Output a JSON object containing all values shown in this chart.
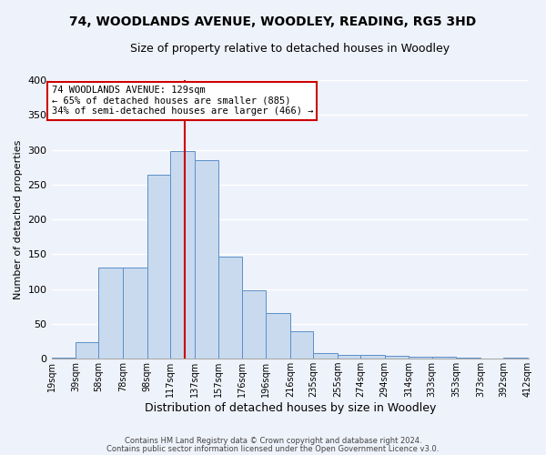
{
  "title1": "74, WOODLANDS AVENUE, WOODLEY, READING, RG5 3HD",
  "title2": "Size of property relative to detached houses in Woodley",
  "xlabel": "Distribution of detached houses by size in Woodley",
  "ylabel": "Number of detached properties",
  "bar_left_edges": [
    19,
    39,
    58,
    78,
    98,
    117,
    137,
    157,
    176,
    196,
    216,
    235,
    255,
    274,
    294,
    314,
    333,
    353,
    373,
    392
  ],
  "bar_widths": [
    20,
    19,
    20,
    20,
    19,
    20,
    20,
    19,
    20,
    20,
    19,
    20,
    19,
    20,
    20,
    19,
    20,
    20,
    19,
    20
  ],
  "bar_heights": [
    2,
    24,
    131,
    131,
    264,
    298,
    285,
    147,
    98,
    66,
    39,
    8,
    5,
    5,
    4,
    3,
    3,
    1,
    0,
    2
  ],
  "bar_color": "#c9daef",
  "bar_edgecolor": "#5b8fc9",
  "vline_x": 129,
  "vline_color": "#cc0000",
  "annotation_text": "74 WOODLANDS AVENUE: 129sqm\n← 65% of detached houses are smaller (885)\n34% of semi-detached houses are larger (466) →",
  "annotation_box_color": "#ffffff",
  "annotation_box_edgecolor": "#cc0000",
  "ylim": [
    0,
    400
  ],
  "yticks": [
    0,
    50,
    100,
    150,
    200,
    250,
    300,
    350,
    400
  ],
  "tick_labels": [
    "19sqm",
    "39sqm",
    "58sqm",
    "78sqm",
    "98sqm",
    "117sqm",
    "137sqm",
    "157sqm",
    "176sqm",
    "196sqm",
    "216sqm",
    "235sqm",
    "255sqm",
    "274sqm",
    "294sqm",
    "314sqm",
    "333sqm",
    "353sqm",
    "373sqm",
    "392sqm",
    "412sqm"
  ],
  "footnote1": "Contains HM Land Registry data © Crown copyright and database right 2024.",
  "footnote2": "Contains public sector information licensed under the Open Government Licence v3.0.",
  "bg_color": "#eef2fa",
  "grid_color": "#ffffff",
  "title1_fontsize": 10,
  "title2_fontsize": 9,
  "annotation_fontsize": 7.5,
  "ylabel_fontsize": 8,
  "xlabel_fontsize": 9,
  "tick_fontsize": 7,
  "ytick_fontsize": 8
}
